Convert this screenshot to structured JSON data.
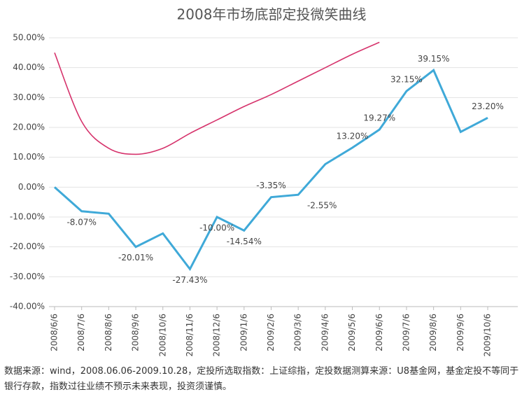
{
  "chart_data": {
    "type": "line",
    "title": "2008年市场底部定投微笑曲线",
    "categories": [
      "2008/6/6",
      "2008/7/6",
      "2008/8/6",
      "2008/9/6",
      "2008/10/6",
      "2008/11/6",
      "2008/12/6",
      "2009/1/6",
      "2009/2/6",
      "2009/3/6",
      "2009/4/6",
      "2009/5/6",
      "2009/6/6",
      "2009/7/6",
      "2009/8/6",
      "2009/9/6",
      "2009/10/6"
    ],
    "series": [
      {
        "color": "#3fa9d8",
        "values": [
          0,
          -8.07,
          -8.9,
          -20.01,
          -15.5,
          -27.43,
          -10.0,
          -14.54,
          -3.35,
          -2.55,
          7.7,
          13.2,
          19.27,
          32.15,
          39.15,
          18.5,
          23.2
        ],
        "value_labels": [
          null,
          "-8.07%",
          null,
          "-20.01%",
          null,
          "-27.43%",
          "-10.00%",
          "-14.54%",
          "-3.35%",
          "-2.55%",
          null,
          "13.20%",
          "19.27%",
          "32.15%",
          "39.15%",
          null,
          "23.20%"
        ]
      },
      {
        "color": "#d6336c",
        "values": [
          45,
          22,
          13,
          11,
          13,
          18,
          22.5,
          27,
          31,
          35.5,
          40,
          44.5,
          48.5,
          null,
          null,
          null,
          null
        ]
      }
    ],
    "ylim": [
      -40,
      50
    ],
    "yticks": [
      {
        "value": -40,
        "label": "-40.00%"
      },
      {
        "value": -30,
        "label": "-30.00%"
      },
      {
        "value": -20,
        "label": "-20.00%"
      },
      {
        "value": -10,
        "label": "-10.00%"
      },
      {
        "value": 0,
        "label": "0.00%"
      },
      {
        "value": 10,
        "label": "10.00%"
      },
      {
        "value": 20,
        "label": "20.00%"
      },
      {
        "value": 30,
        "label": "30.00%"
      },
      {
        "value": 40,
        "label": "40.00%"
      },
      {
        "value": 50,
        "label": "50.00%"
      }
    ],
    "grid": true,
    "note": "数据来源：wind，2008.06.06-2009.10.28，定投所选取指数：上证综指，定投数据测算来源：U8基金网，基金定投不等同于银行存款，指数过往业绩不预示未来表现，投资须谨慎。"
  }
}
